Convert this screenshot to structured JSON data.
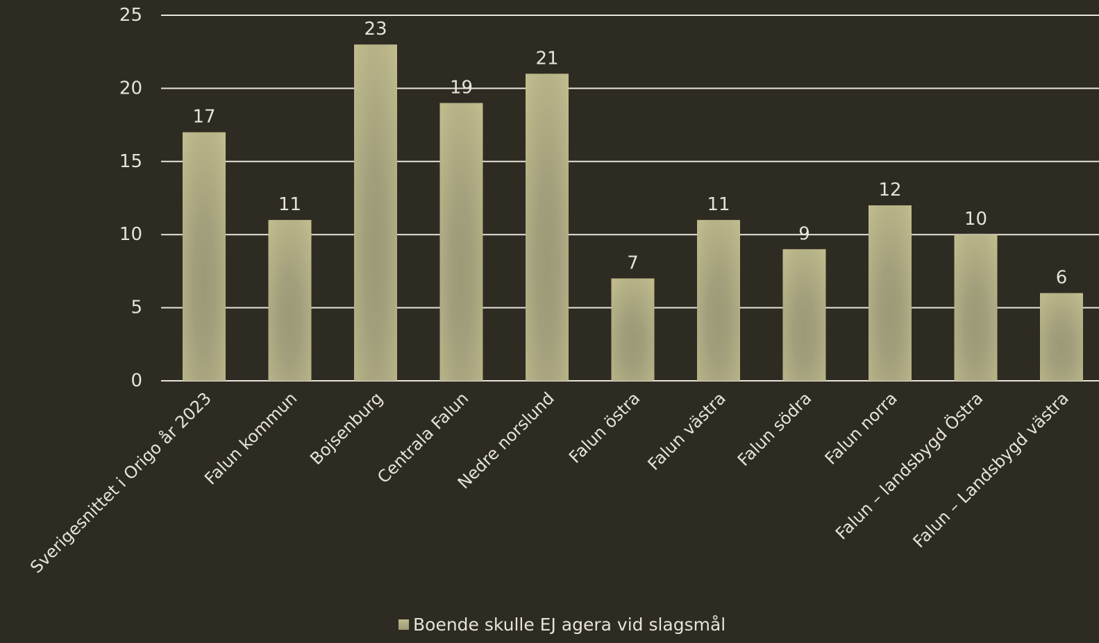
{
  "chart_data": {
    "type": "bar",
    "categories": [
      "Sverigesnittet i Origo år 2023",
      "Falun kommun",
      "Bojsenburg",
      "Centrala Falun",
      "Nedre norslund",
      "Falun östra",
      "Falun västra",
      "Falun södra",
      "Falun norra",
      "Falun – landsbygd Östra",
      "Falun – Landsbygd västra"
    ],
    "series": [
      {
        "name": "Boende skulle EJ agera vid slagsmål",
        "values": [
          17,
          11,
          23,
          19,
          21,
          7,
          11,
          9,
          12,
          10,
          6
        ]
      }
    ],
    "ylim": [
      0,
      25
    ],
    "yticks": [
      0,
      5,
      10,
      15,
      20,
      25
    ],
    "grid": true,
    "legend_position": "bottom",
    "data_labels": true,
    "colors": {
      "background": "#2e2b22",
      "bar_light": "#bfbb8d",
      "bar_dark": "#9c9977",
      "grid": "#e8e6dc",
      "text": "#e6e4d8"
    }
  }
}
